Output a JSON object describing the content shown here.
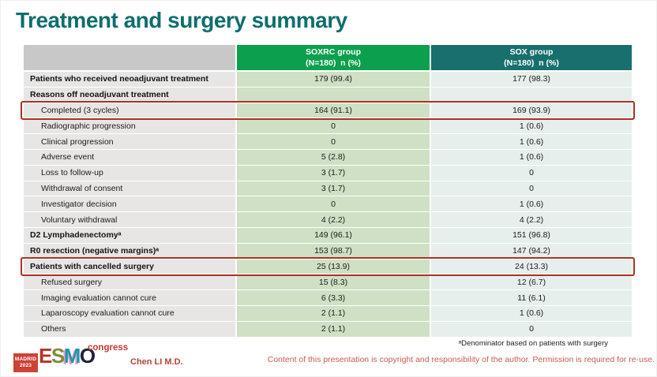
{
  "title": "Treatment and surgery summary",
  "table": {
    "header": {
      "soxrc": {
        "line1": "SOXRC group",
        "line2": "(N=180)  n (%)"
      },
      "sox": {
        "line1": "SOX group",
        "line2": "(N=180)  n (%)"
      }
    },
    "rows": [
      {
        "label": "Patients who received neoadjuvant treatment",
        "soxrc": "179 (99.4)",
        "sox": "177 (98.3)"
      },
      {
        "label": "Reasons off neoadjuvant treatment",
        "soxrc": "",
        "sox": ""
      },
      {
        "label": "Completed (3 cycles)",
        "soxrc": "164 (91.1)",
        "sox": "169 (93.9)"
      },
      {
        "label": "Radiographic progression",
        "soxrc": "0",
        "sox": "1 (0.6)"
      },
      {
        "label": "Clinical progression",
        "soxrc": "0",
        "sox": "1 (0.6)"
      },
      {
        "label": "Adverse event",
        "soxrc": "5 (2.8)",
        "sox": "1 (0.6)"
      },
      {
        "label": "Loss to follow-up",
        "soxrc": "3 (1.7)",
        "sox": "0"
      },
      {
        "label": "Withdrawal of consent",
        "soxrc": "3 (1.7)",
        "sox": "0"
      },
      {
        "label": "Investigator decision",
        "soxrc": "0",
        "sox": "1 (0.6)"
      },
      {
        "label": "Voluntary withdrawal",
        "soxrc": "4 (2.2)",
        "sox": "4 (2.2)"
      },
      {
        "label": "D2 Lymphadenectomyᵃ",
        "soxrc": "149 (96.1)",
        "sox": "151 (96.8)"
      },
      {
        "label": "R0 resection (negative margins)ᵃ",
        "soxrc": "153 (98.7)",
        "sox": "147 (94.2)"
      },
      {
        "label": "Patients with cancelled surgery",
        "soxrc": "25 (13.9)",
        "sox": "24 (13.3)"
      },
      {
        "label": "Refused surgery",
        "soxrc": "15 (8.3)",
        "sox": "12 (6.7)"
      },
      {
        "label": "Imaging evaluation cannot cure",
        "soxrc": "6 (3.3)",
        "sox": "11 (6.1)"
      },
      {
        "label": "Laparoscopy evaluation cannot cure",
        "soxrc": "2 (1.1)",
        "sox": "1 (0.6)"
      },
      {
        "label": "Others",
        "soxrc": "2 (1.1)",
        "sox": "0"
      }
    ]
  },
  "footer": {
    "logo": {
      "badge_line1": "MADRID",
      "badge_line2": "2023",
      "letters": [
        "E",
        "S",
        "M",
        "O"
      ],
      "congress": "congress"
    },
    "presenter": "Chen LI M.D.",
    "footnote": "ᵃDenominator based on patients with surgery",
    "copyright": "Content of this presentation is copyright and responsibility of the author. Permission is required for re-use."
  },
  "colors": {
    "title_teal": "#0e6e6d",
    "header_green": "#0ca04e",
    "header_teal": "#186f6e",
    "label_cell_gray": "#e7e6e4",
    "soxrc_cell_green": "#cfe0c5",
    "sox_cell_teal": "#e6efeb",
    "highlight_border_red": "#a93226",
    "copyright_red": "#cc5a52"
  }
}
